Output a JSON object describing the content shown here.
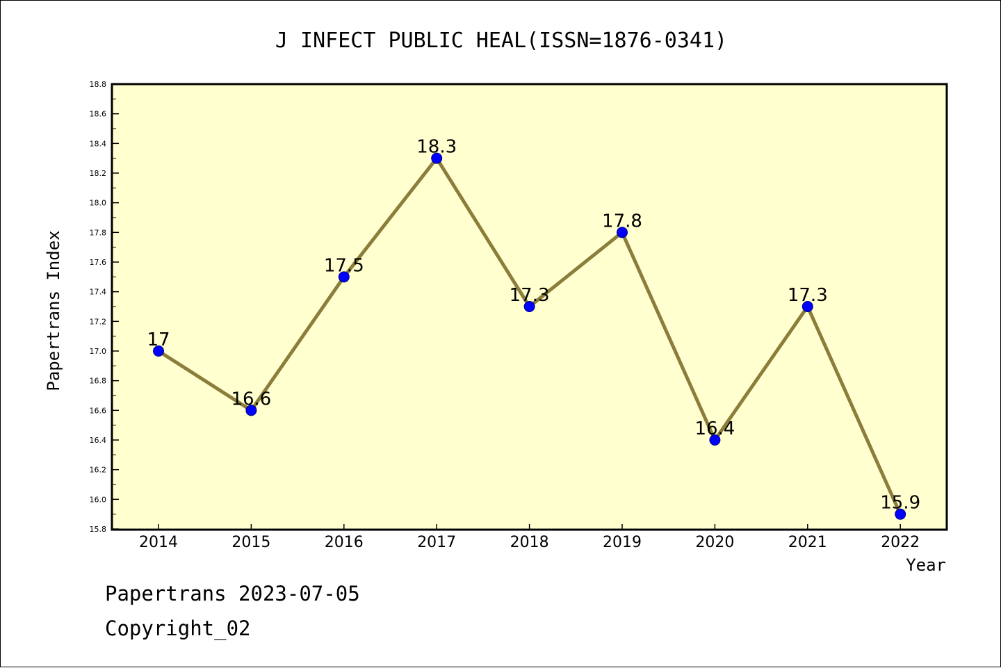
{
  "chart_data": {
    "type": "line",
    "title": "J INFECT PUBLIC HEAL(ISSN=1876-0341)",
    "xlabel": "Year",
    "ylabel": "Papertrans Index",
    "categories": [
      "2014",
      "2015",
      "2016",
      "2017",
      "2018",
      "2019",
      "2020",
      "2021",
      "2022"
    ],
    "series": [
      {
        "values": [
          17.0,
          16.6,
          17.5,
          18.3,
          17.3,
          17.8,
          16.4,
          17.3,
          15.9
        ],
        "labels": [
          "17",
          "16.6",
          "17.5",
          "18.3",
          "17.3",
          "17.8",
          "16.4",
          "17.3",
          "15.9"
        ]
      }
    ],
    "ylim": [
      15.8,
      18.8
    ],
    "yticks": [
      "15.8",
      "16.0",
      "16.2",
      "16.4",
      "16.6",
      "16.8",
      "17.0",
      "17.2",
      "17.4",
      "17.6",
      "17.8",
      "18.0",
      "18.2",
      "18.4",
      "18.6",
      "18.8"
    ],
    "grid": false,
    "colors": {
      "plot_background": "#ffffd0",
      "line": "#8b7d3a",
      "marker": "#0000ff"
    }
  },
  "footer": {
    "line1": "Papertrans 2023-07-05",
    "line2": "Copyright_02"
  }
}
